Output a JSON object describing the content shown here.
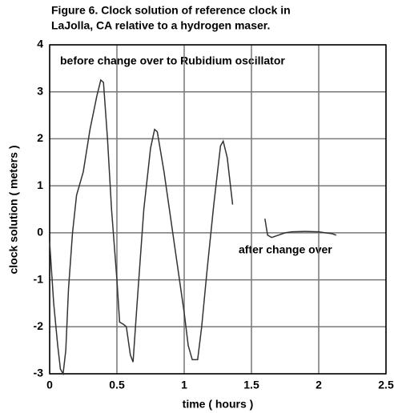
{
  "chart_data": {
    "type": "line",
    "title": "Figure 6.  Clock solution of reference clock in",
    "subtitle": "LaJolla, CA relative to a hydrogen maser.",
    "x_label": "time ( hours )",
    "y_label": "clock solution  ( meters )",
    "annotations": [
      "before change over to Rubidium oscillator",
      "after change over"
    ],
    "x": [
      0,
      0.03,
      0.06,
      0.08,
      0.1,
      0.12,
      0.14,
      0.17,
      0.2,
      0.25,
      0.3,
      0.35,
      0.38,
      0.4,
      0.43,
      0.46,
      0.5,
      0.52,
      0.55,
      0.57,
      0.6,
      0.62,
      0.65,
      0.7,
      0.75,
      0.78,
      0.8,
      0.85,
      0.9,
      0.95,
      1.0,
      1.03,
      1.06,
      1.1,
      1.13,
      1.17,
      1.22,
      1.27,
      1.29,
      1.32,
      1.36,
      1.48,
      1.6,
      1.62,
      1.65,
      1.7,
      1.75,
      1.8,
      1.9,
      2.0,
      2.05,
      2.1,
      2.13
    ],
    "series": [
      {
        "name": "clock solution",
        "color": "#333333",
        "values": [
          -0.2,
          -1.5,
          -2.4,
          -2.9,
          -3.0,
          -2.5,
          -1.2,
          0.0,
          0.8,
          1.3,
          2.2,
          2.9,
          3.25,
          3.2,
          2.0,
          0.5,
          -1.0,
          -1.9,
          -1.95,
          -2.0,
          -2.6,
          -2.75,
          -1.5,
          0.5,
          1.8,
          2.2,
          2.15,
          1.3,
          0.3,
          -0.7,
          -1.7,
          -2.4,
          -2.7,
          -2.7,
          -2.0,
          -0.8,
          0.6,
          1.85,
          1.95,
          1.6,
          0.6,
          null,
          0.3,
          -0.05,
          -0.1,
          -0.05,
          0.0,
          0.02,
          0.03,
          0.02,
          0.0,
          -0.02,
          -0.05
        ]
      }
    ],
    "xlim": [
      0,
      2.5
    ],
    "xticks": [
      0,
      0.5,
      1,
      1.5,
      2,
      2.5
    ],
    "ylim": [
      -3,
      4
    ],
    "yticks": [
      -3,
      -2,
      -1,
      0,
      1,
      2,
      3,
      4
    ],
    "grid": true
  }
}
